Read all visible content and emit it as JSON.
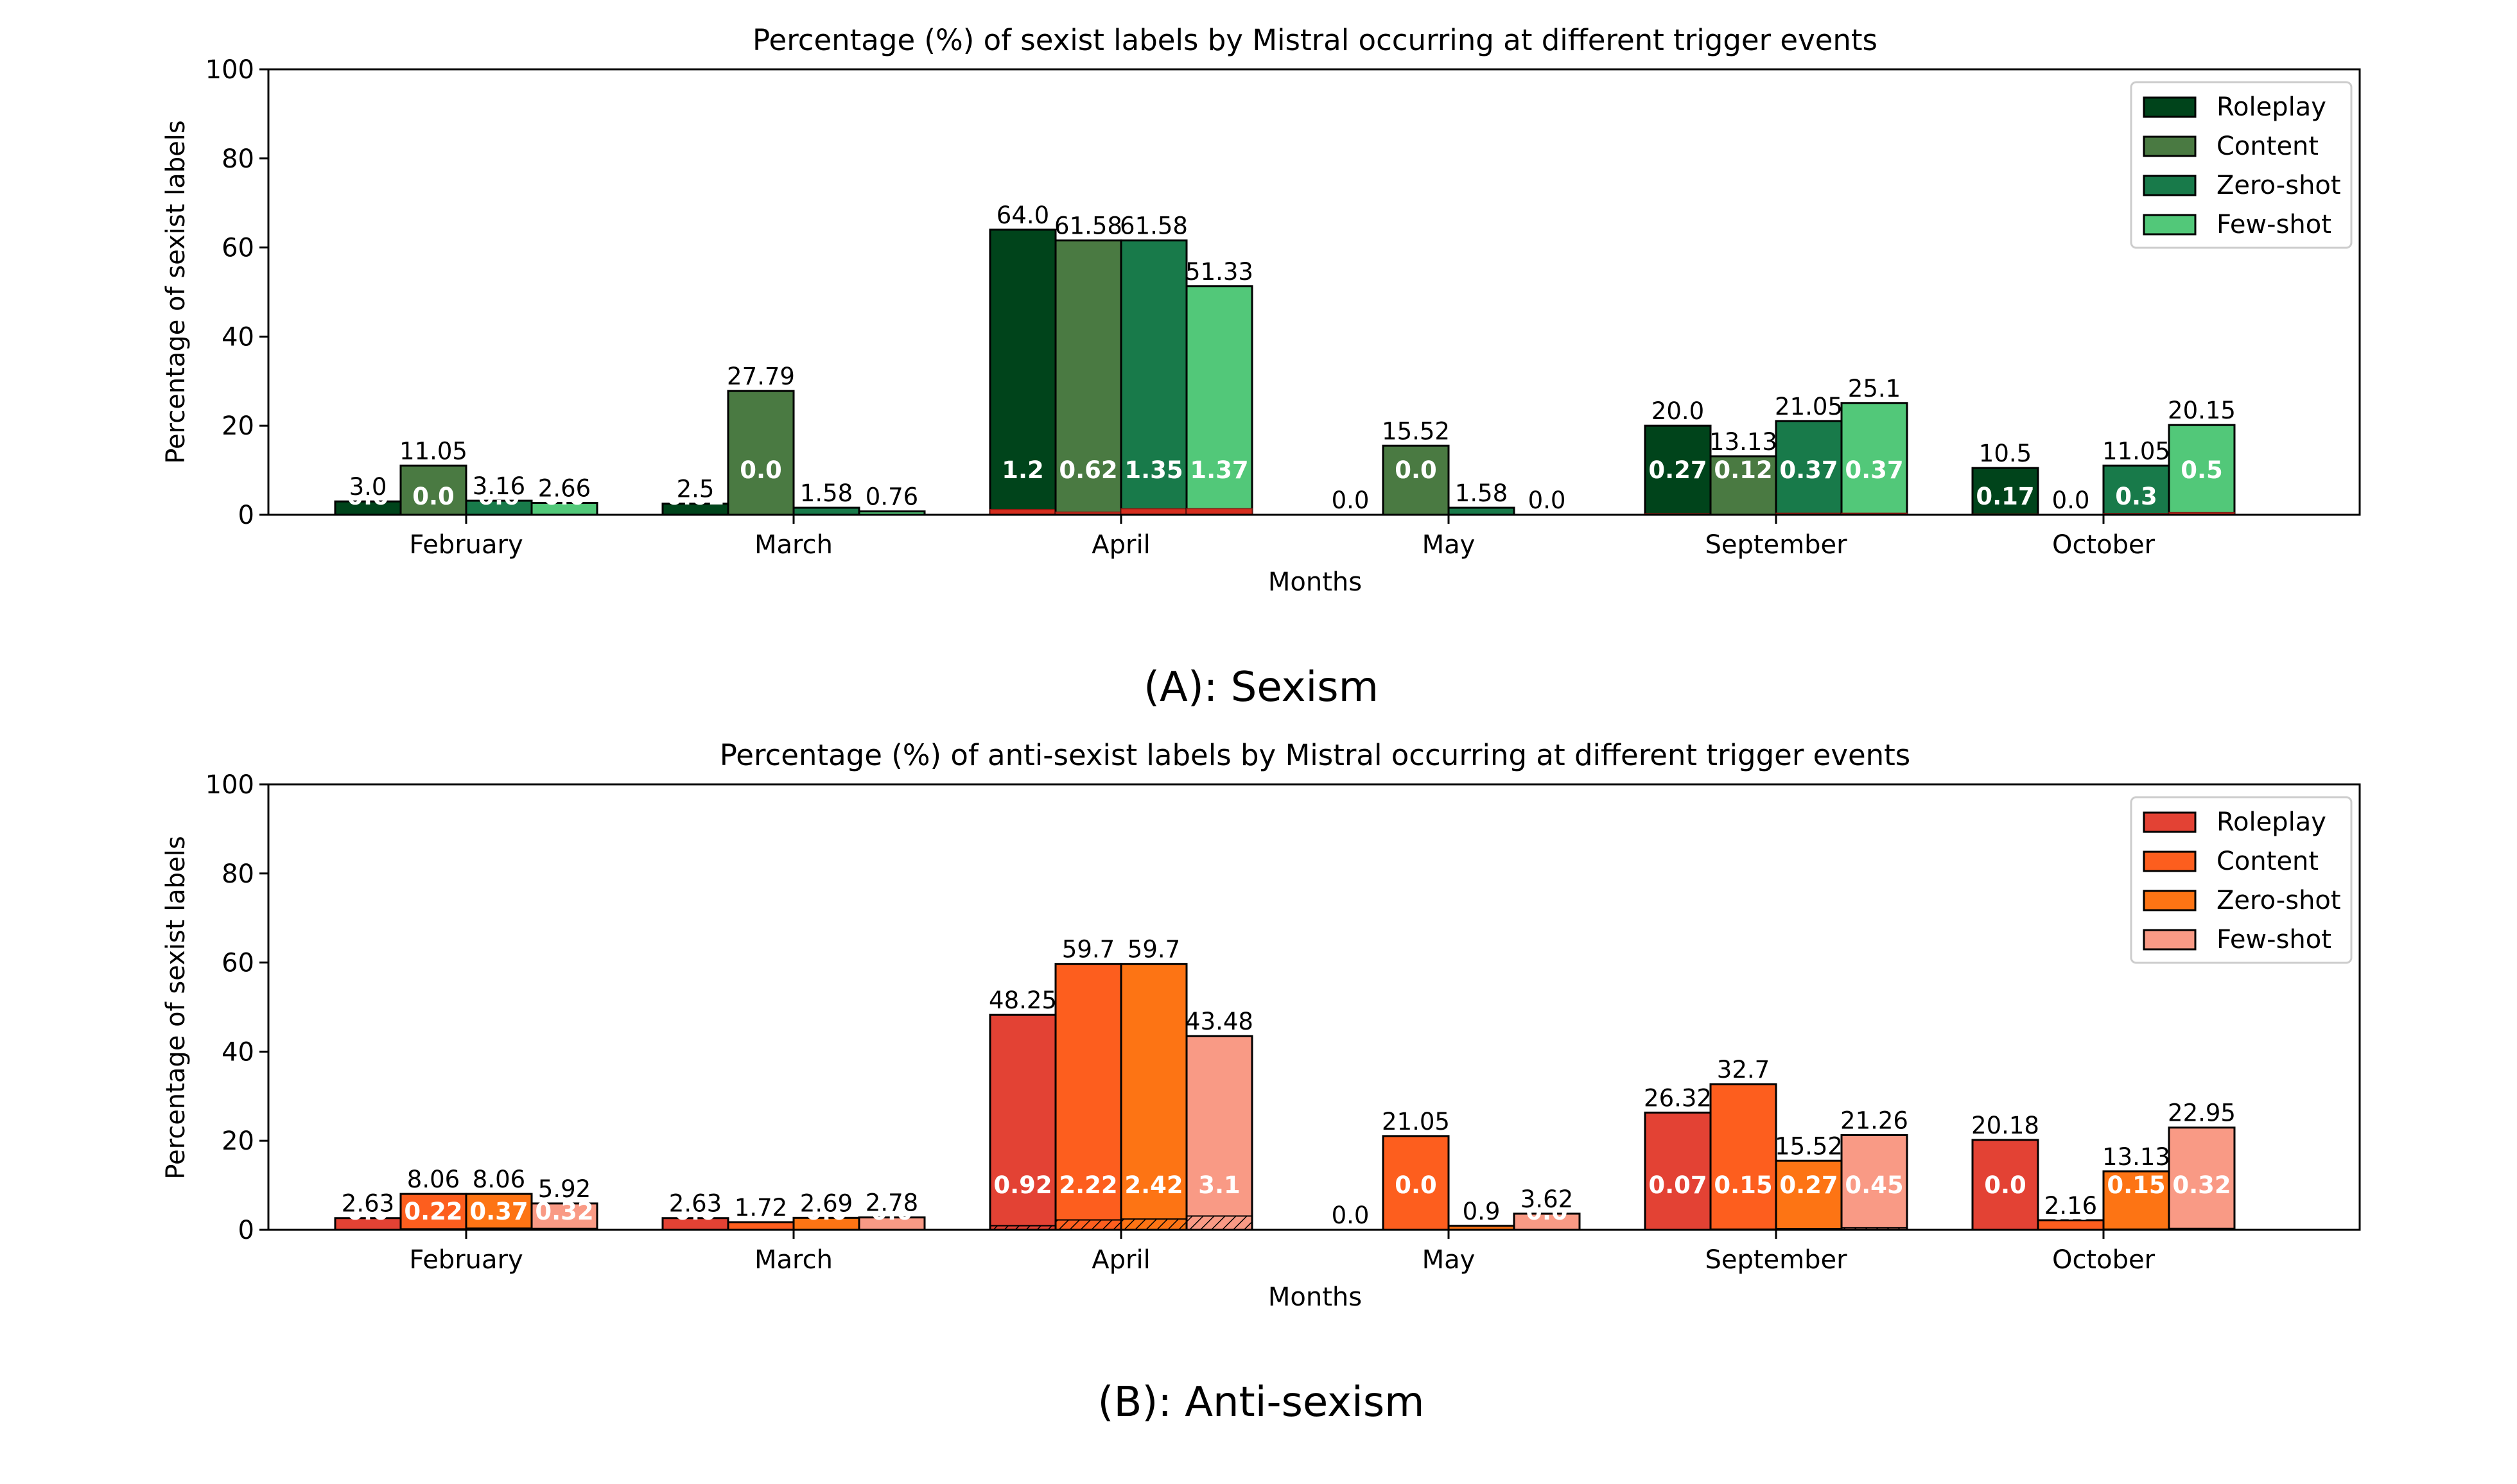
{
  "colors": {
    "sexism": [
      "#00441b",
      "#4a7a42",
      "#187a4a",
      "#52c879"
    ],
    "antisexism": [
      "#e34234",
      "#fd5e1e",
      "#fd7414",
      "#f99a85"
    ],
    "overlay": "#d62e1f",
    "edge": "#000000"
  },
  "chart_data": [
    {
      "type": "bar",
      "caption": "(A): Sexism",
      "title": "Percentage (%) of sexist labels by Mistral occurring at different trigger events",
      "xlabel": "Months",
      "ylabel": "Percentage of sexist labels",
      "ylim": [
        0,
        100
      ],
      "yticks": [
        "0",
        "20",
        "40",
        "60",
        "80",
        "100"
      ],
      "grid": false,
      "legend_position": "top-right",
      "categories": [
        "February",
        "March",
        "April",
        "May",
        "September",
        "October"
      ],
      "series": [
        {
          "name": "Roleplay",
          "values": [
            3.0,
            2.5,
            64.0,
            0.0,
            20.0,
            10.5
          ],
          "labels": [
            "3.0",
            "2.5",
            "64.0",
            "0.0",
            "20.0",
            "10.5"
          ],
          "inner_values": [
            0.0,
            0.02,
            1.2,
            0.0,
            0.27,
            0.17
          ],
          "inner_labels": [
            "0.0",
            "0.02",
            "1.2",
            "",
            "0.27",
            "0.17"
          ]
        },
        {
          "name": "Content",
          "values": [
            11.05,
            27.79,
            61.58,
            15.52,
            13.13,
            0.0
          ],
          "labels": [
            "11.05",
            "27.79",
            "61.58",
            "15.52",
            "13.13",
            "0.0"
          ],
          "inner_values": [
            0.0,
            0.0,
            0.62,
            0.0,
            0.12,
            0.0
          ],
          "inner_labels": [
            "0.0",
            "0.0",
            "0.62",
            "0.0",
            "0.12",
            "0.0"
          ]
        },
        {
          "name": "Zero-shot",
          "values": [
            3.16,
            1.58,
            61.58,
            1.58,
            21.05,
            11.05
          ],
          "labels": [
            "3.16",
            "1.58",
            "61.58",
            "1.58",
            "21.05",
            "11.05"
          ],
          "inner_values": [
            0.0,
            0.0,
            1.35,
            0.0,
            0.37,
            0.3
          ],
          "inner_labels": [
            "0.0",
            "0.0",
            "1.35",
            "0.0",
            "0.37",
            "0.3"
          ]
        },
        {
          "name": "Few-shot",
          "values": [
            2.66,
            0.76,
            51.33,
            0.0,
            25.1,
            20.15
          ],
          "labels": [
            "2.66",
            "0.76",
            "51.33",
            "0.0",
            "25.1",
            "20.15"
          ],
          "inner_values": [
            0.0,
            0.0,
            1.37,
            0.0,
            0.37,
            0.5
          ],
          "inner_labels": [
            "0.0",
            "",
            "1.37",
            "",
            "0.37",
            "0.5"
          ]
        }
      ]
    },
    {
      "type": "bar",
      "caption": "(B): Anti-sexism",
      "title": "Percentage (%) of anti-sexist labels by Mistral occurring at different trigger events",
      "xlabel": "Months",
      "ylabel": "Percentage of sexist labels",
      "ylim": [
        0,
        100
      ],
      "yticks": [
        "0",
        "20",
        "40",
        "60",
        "80",
        "100"
      ],
      "grid": false,
      "legend_position": "top-right",
      "categories": [
        "February",
        "March",
        "April",
        "May",
        "September",
        "October"
      ],
      "series": [
        {
          "name": "Roleplay",
          "values": [
            2.63,
            2.63,
            48.25,
            0.0,
            26.32,
            20.18
          ],
          "labels": [
            "2.63",
            "2.63",
            "48.25",
            "0.0",
            "26.32",
            "20.18"
          ],
          "inner_values": [
            0.0,
            0.0,
            0.92,
            0.0,
            0.07,
            0.0
          ],
          "inner_labels": [
            "0.0",
            "0.0",
            "0.92",
            "",
            "0.07",
            "0.0"
          ]
        },
        {
          "name": "Content",
          "values": [
            8.06,
            1.72,
            59.7,
            21.05,
            32.7,
            2.16
          ],
          "labels": [
            "8.06",
            "1.72",
            "59.7",
            "21.05",
            "32.7",
            "2.16"
          ],
          "inner_values": [
            0.22,
            0.0,
            2.22,
            0.0,
            0.15,
            0.0
          ],
          "inner_labels": [
            "0.22",
            "0.0",
            "2.22",
            "0.0",
            "0.15",
            "0.0"
          ]
        },
        {
          "name": "Zero-shot",
          "values": [
            8.06,
            2.69,
            59.7,
            0.9,
            15.52,
            13.13
          ],
          "labels": [
            "8.06",
            "2.69",
            "59.7",
            "0.9",
            "15.52",
            "13.13"
          ],
          "inner_values": [
            0.37,
            0.0,
            2.42,
            0.0,
            0.27,
            0.15
          ],
          "inner_labels": [
            "0.37",
            "0.0",
            "2.42",
            "0.0",
            "0.27",
            "0.15"
          ]
        },
        {
          "name": "Few-shot",
          "values": [
            5.92,
            2.78,
            43.48,
            3.62,
            21.26,
            22.95
          ],
          "labels": [
            "5.92",
            "2.78",
            "43.48",
            "3.62",
            "21.26",
            "22.95"
          ],
          "inner_values": [
            0.32,
            0.0,
            3.1,
            0.0,
            0.45,
            0.32
          ],
          "inner_labels": [
            "0.32",
            "0.0",
            "3.1",
            "0.0",
            "0.45",
            "0.32"
          ]
        }
      ]
    }
  ]
}
